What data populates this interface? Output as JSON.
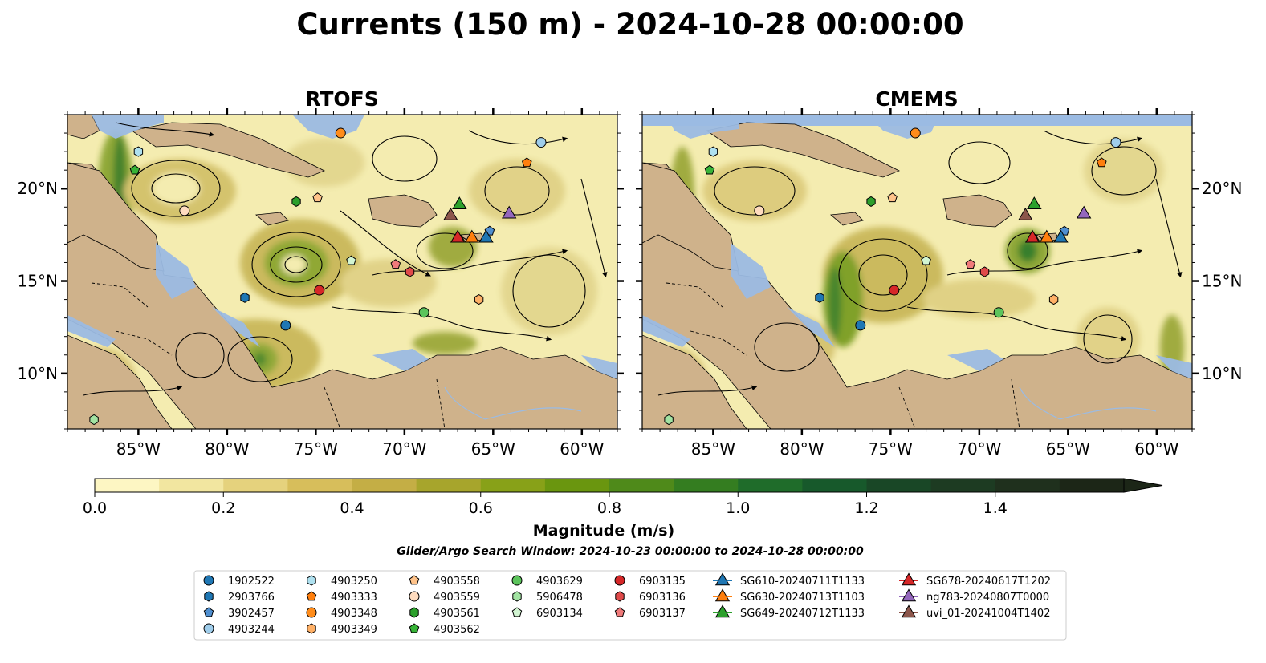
{
  "title": "Currents (150 m) - 2024-10-28 00:00:00",
  "panels": [
    {
      "title": "RTOFS",
      "id": "rtofs"
    },
    {
      "title": "CMEMS",
      "id": "cmems"
    }
  ],
  "map": {
    "lon_range": [
      -89,
      -58
    ],
    "lat_range": [
      7,
      24
    ],
    "lon_ticks": [
      {
        "v": -85,
        "label": "85°W"
      },
      {
        "v": -80,
        "label": "80°W"
      },
      {
        "v": -75,
        "label": "75°W"
      },
      {
        "v": -70,
        "label": "70°W"
      },
      {
        "v": -65,
        "label": "65°W"
      },
      {
        "v": -60,
        "label": "60°W"
      }
    ],
    "lat_ticks": [
      {
        "v": 20,
        "label": "20°N"
      },
      {
        "v": 15,
        "label": "15°N"
      },
      {
        "v": 10,
        "label": "10°N"
      }
    ],
    "colors": {
      "ocean_deep": "#f4ecb0",
      "shallow": "#9bbbe3",
      "land": "#cfb28b"
    }
  },
  "colorbar": {
    "label": "Magnitude (m/s)",
    "ticks": [
      "0.0",
      "0.2",
      "0.4",
      "0.6",
      "0.8",
      "1.0",
      "1.2",
      "1.4"
    ],
    "colors": [
      "#fdf6c3",
      "#f2e6a0",
      "#e5d27d",
      "#d7be5b",
      "#c4ae45",
      "#a7a52c",
      "#88a118",
      "#6a960f",
      "#4f8a1a",
      "#347d20",
      "#1f6c2a",
      "#17592b",
      "#194726",
      "#1d3b22",
      "#1f301d",
      "#1c2617"
    ]
  },
  "search_window": "Glider/Argo Search Window: 2024-10-23 00:00:00 to 2024-10-28 00:00:00",
  "legend": [
    [
      {
        "label": "1902522",
        "marker": "circle",
        "color": "#1f77b4"
      },
      {
        "label": "2903766",
        "marker": "hexagon",
        "color": "#1f77b4"
      },
      {
        "label": "3902457",
        "marker": "pentagon",
        "color": "#4f8fd0"
      },
      {
        "label": "4903244",
        "marker": "circle",
        "color": "#9fcdeb"
      }
    ],
    [
      {
        "label": "4903250",
        "marker": "hexagon",
        "color": "#aee0ef"
      },
      {
        "label": "4903333",
        "marker": "pentagon",
        "color": "#ff7f0e"
      },
      {
        "label": "4903348",
        "marker": "circle",
        "color": "#ff8c1a"
      },
      {
        "label": "4903349",
        "marker": "hexagon",
        "color": "#ffb066"
      }
    ],
    [
      {
        "label": "4903558",
        "marker": "pentagon",
        "color": "#ffc38a"
      },
      {
        "label": "4903559",
        "marker": "circle",
        "color": "#ffdcbf"
      },
      {
        "label": "4903561",
        "marker": "hexagon",
        "color": "#2ca02c"
      },
      {
        "label": "4903562",
        "marker": "pentagon",
        "color": "#37b337"
      }
    ],
    [
      {
        "label": "4903629",
        "marker": "circle",
        "color": "#5cc45c"
      },
      {
        "label": "5906478",
        "marker": "hexagon",
        "color": "#a2e3a2"
      },
      {
        "label": "6903134",
        "marker": "pentagon",
        "color": "#d2f5d2"
      }
    ],
    [
      {
        "label": "6903135",
        "marker": "circle",
        "color": "#d62728"
      },
      {
        "label": "6903136",
        "marker": "hexagon",
        "color": "#e04a4a"
      },
      {
        "label": "6903137",
        "marker": "pentagon",
        "color": "#f07a7a"
      }
    ],
    [
      {
        "label": "SG610-20240711T1133",
        "marker": "triangle",
        "color": "#1f77b4"
      },
      {
        "label": "SG630-20240713T1103",
        "marker": "triangle",
        "color": "#ff7f0e"
      },
      {
        "label": "SG649-20240712T1133",
        "marker": "triangle",
        "color": "#2ca02c"
      }
    ],
    [
      {
        "label": "SG678-20240617T1202",
        "marker": "triangle",
        "color": "#d62728"
      },
      {
        "label": "ng783-20240807T0000",
        "marker": "triangle",
        "color": "#9467bd"
      },
      {
        "label": "uvi_01-20241004T1402",
        "marker": "triangle",
        "color": "#8c564b"
      }
    ]
  ],
  "points": [
    {
      "id": "1902522",
      "marker": "circle",
      "color": "#1f77b4",
      "rtofs": [
        -76.7,
        12.6
      ],
      "cmems": [
        -76.7,
        12.6
      ]
    },
    {
      "id": "2903766",
      "marker": "hexagon",
      "color": "#1f77b4",
      "rtofs": [
        -79.0,
        14.1
      ],
      "cmems": [
        -79.0,
        14.1
      ]
    },
    {
      "id": "3902457",
      "marker": "pentagon",
      "color": "#4f8fd0",
      "rtofs": [
        -65.2,
        17.7
      ],
      "cmems": [
        -65.2,
        17.7
      ]
    },
    {
      "id": "4903244",
      "marker": "circle",
      "color": "#9fcdeb",
      "rtofs": [
        -62.3,
        22.5
      ],
      "cmems": [
        -62.3,
        22.5
      ]
    },
    {
      "id": "4903250",
      "marker": "hexagon",
      "color": "#aee0ef",
      "rtofs": [
        -85.0,
        22.0
      ],
      "cmems": [
        -85.0,
        22.0
      ]
    },
    {
      "id": "4903333",
      "marker": "pentagon",
      "color": "#ff7f0e",
      "rtofs": [
        -63.1,
        21.4
      ],
      "cmems": [
        -63.1,
        21.4
      ]
    },
    {
      "id": "4903348",
      "marker": "circle",
      "color": "#ff8c1a",
      "rtofs": [
        -73.6,
        23.0
      ],
      "cmems": [
        -73.6,
        23.0
      ]
    },
    {
      "id": "4903349",
      "marker": "hexagon",
      "color": "#ffb066",
      "rtofs": [
        -65.8,
        14.0
      ],
      "cmems": [
        -65.8,
        14.0
      ]
    },
    {
      "id": "4903558",
      "marker": "pentagon",
      "color": "#ffc38a",
      "rtofs": [
        -74.9,
        19.5
      ],
      "cmems": [
        -74.9,
        19.5
      ]
    },
    {
      "id": "4903559",
      "marker": "circle",
      "color": "#ffdcbf",
      "rtofs": [
        -82.4,
        18.8
      ],
      "cmems": [
        -82.4,
        18.8
      ]
    },
    {
      "id": "4903561",
      "marker": "hexagon",
      "color": "#2ca02c",
      "rtofs": [
        -76.1,
        19.3
      ],
      "cmems": [
        -76.1,
        19.3
      ]
    },
    {
      "id": "4903562",
      "marker": "pentagon",
      "color": "#37b337",
      "rtofs": [
        -85.2,
        21.0
      ],
      "cmems": [
        -85.2,
        21.0
      ]
    },
    {
      "id": "4903629",
      "marker": "circle",
      "color": "#5cc45c",
      "rtofs": [
        -68.9,
        13.3
      ],
      "cmems": [
        -68.9,
        13.3
      ]
    },
    {
      "id": "5906478",
      "marker": "hexagon",
      "color": "#a2e3a2",
      "rtofs": [
        -87.5,
        7.5
      ],
      "cmems": [
        -87.5,
        7.5
      ]
    },
    {
      "id": "6903134",
      "marker": "pentagon",
      "color": "#d2f5d2",
      "rtofs": [
        -73.0,
        16.1
      ],
      "cmems": [
        -73.0,
        16.1
      ]
    },
    {
      "id": "6903135",
      "marker": "circle",
      "color": "#d62728",
      "rtofs": [
        -74.8,
        14.5
      ],
      "cmems": [
        -74.8,
        14.5
      ]
    },
    {
      "id": "6903136",
      "marker": "hexagon",
      "color": "#e04a4a",
      "rtofs": [
        -69.7,
        15.5
      ],
      "cmems": [
        -69.7,
        15.5
      ]
    },
    {
      "id": "6903137",
      "marker": "pentagon",
      "color": "#f07a7a",
      "rtofs": [
        -70.5,
        15.9
      ],
      "cmems": [
        -70.5,
        15.9
      ]
    },
    {
      "id": "SG610-20240711T1133",
      "marker": "triangle",
      "color": "#1f77b4",
      "rtofs": [
        -65.4,
        17.4
      ],
      "cmems": [
        -65.4,
        17.4
      ]
    },
    {
      "id": "SG630-20240713T1103",
      "marker": "triangle",
      "color": "#ff7f0e",
      "rtofs": [
        -66.2,
        17.4
      ],
      "cmems": [
        -66.2,
        17.4
      ]
    },
    {
      "id": "SG649-20240712T1133",
      "marker": "triangle",
      "color": "#2ca02c",
      "rtofs": [
        -66.9,
        19.2
      ],
      "cmems": [
        -66.9,
        19.2
      ]
    },
    {
      "id": "SG678-20240617T1202",
      "marker": "triangle",
      "color": "#d62728",
      "rtofs": [
        -67.0,
        17.4
      ],
      "cmems": [
        -67.0,
        17.4
      ]
    },
    {
      "id": "ng783-20240807T0000",
      "marker": "triangle",
      "color": "#9467bd",
      "rtofs": [
        -64.1,
        18.7
      ],
      "cmems": [
        -64.1,
        18.7
      ]
    },
    {
      "id": "uvi_01-20241004T1402",
      "marker": "triangle",
      "color": "#8c564b",
      "rtofs": [
        -67.4,
        18.6
      ],
      "cmems": [
        -67.4,
        18.6
      ]
    }
  ]
}
